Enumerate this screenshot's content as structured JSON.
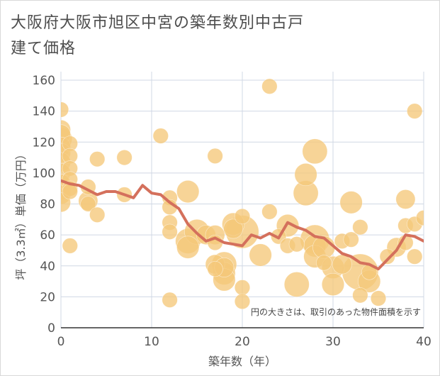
{
  "chart_data": {
    "type": "scatter",
    "title": "大阪府大阪市旭区中宮の築年数別中古戸建て価格",
    "xlabel": "築年数（年）",
    "ylabel": "坪（3.3㎡）単価（万円）",
    "note": "円の大きさは、取引のあった物件面積を示す",
    "xlim": [
      0,
      40
    ],
    "ylim": [
      0,
      160
    ],
    "xticks": [
      "0",
      "10",
      "20",
      "30",
      "40"
    ],
    "yticks": [
      "0",
      "20",
      "40",
      "60",
      "80",
      "100",
      "120",
      "140",
      "160"
    ],
    "grid": true,
    "colors": {
      "bubble": "#f5c87a",
      "line": "#d4705c",
      "grid": "#d0d8e4"
    },
    "points": [
      {
        "x": 0,
        "y": 141,
        "s": 1
      },
      {
        "x": 0,
        "y": 128,
        "s": 2
      },
      {
        "x": 0,
        "y": 125,
        "s": 2
      },
      {
        "x": 0,
        "y": 122,
        "s": 3
      },
      {
        "x": 0,
        "y": 117,
        "s": 2
      },
      {
        "x": 0,
        "y": 113,
        "s": 2
      },
      {
        "x": 0,
        "y": 107,
        "s": 2
      },
      {
        "x": 0,
        "y": 100,
        "s": 2
      },
      {
        "x": 0,
        "y": 93,
        "s": 2
      },
      {
        "x": 0,
        "y": 89,
        "s": 2
      },
      {
        "x": 0,
        "y": 86,
        "s": 2
      },
      {
        "x": 0,
        "y": 81,
        "s": 2
      },
      {
        "x": 1,
        "y": 119,
        "s": 1
      },
      {
        "x": 1,
        "y": 111,
        "s": 1
      },
      {
        "x": 1,
        "y": 103,
        "s": 1
      },
      {
        "x": 1,
        "y": 96,
        "s": 1
      },
      {
        "x": 1,
        "y": 90,
        "s": 1
      },
      {
        "x": 1,
        "y": 88,
        "s": 1
      },
      {
        "x": 1,
        "y": 53,
        "s": 1
      },
      {
        "x": 3,
        "y": 91,
        "s": 1
      },
      {
        "x": 3,
        "y": 82,
        "s": 2
      },
      {
        "x": 3,
        "y": 80,
        "s": 1
      },
      {
        "x": 4,
        "y": 109,
        "s": 1
      },
      {
        "x": 4,
        "y": 73,
        "s": 1
      },
      {
        "x": 7,
        "y": 110,
        "s": 1
      },
      {
        "x": 7,
        "y": 86,
        "s": 1
      },
      {
        "x": 11,
        "y": 124,
        "s": 1
      },
      {
        "x": 12,
        "y": 84,
        "s": 1
      },
      {
        "x": 12,
        "y": 78,
        "s": 1
      },
      {
        "x": 12,
        "y": 68,
        "s": 1
      },
      {
        "x": 12,
        "y": 62,
        "s": 1
      },
      {
        "x": 12,
        "y": 18,
        "s": 1
      },
      {
        "x": 14,
        "y": 88,
        "s": 3
      },
      {
        "x": 14,
        "y": 56,
        "s": 4
      },
      {
        "x": 14,
        "y": 52,
        "s": 3
      },
      {
        "x": 15,
        "y": 62,
        "s": 4
      },
      {
        "x": 16,
        "y": 60,
        "s": 2
      },
      {
        "x": 17,
        "y": 111,
        "s": 1
      },
      {
        "x": 17,
        "y": 60,
        "s": 2
      },
      {
        "x": 17,
        "y": 55,
        "s": 1
      },
      {
        "x": 17,
        "y": 41,
        "s": 2
      },
      {
        "x": 17,
        "y": 38,
        "s": 1
      },
      {
        "x": 18,
        "y": 41,
        "s": 4
      },
      {
        "x": 18,
        "y": 39,
        "s": 2
      },
      {
        "x": 18,
        "y": 35,
        "s": 3
      },
      {
        "x": 18,
        "y": 31,
        "s": 3
      },
      {
        "x": 19,
        "y": 67,
        "s": 3
      },
      {
        "x": 19,
        "y": 64,
        "s": 2
      },
      {
        "x": 20,
        "y": 72,
        "s": 1
      },
      {
        "x": 20,
        "y": 62,
        "s": 8
      },
      {
        "x": 20,
        "y": 26,
        "s": 1
      },
      {
        "x": 20,
        "y": 17,
        "s": 1
      },
      {
        "x": 22,
        "y": 47,
        "s": 3
      },
      {
        "x": 23,
        "y": 156,
        "s": 1
      },
      {
        "x": 23,
        "y": 75,
        "s": 1
      },
      {
        "x": 24,
        "y": 59,
        "s": 1
      },
      {
        "x": 25,
        "y": 66,
        "s": 3
      },
      {
        "x": 25,
        "y": 53,
        "s": 1
      },
      {
        "x": 26,
        "y": 54,
        "s": 1
      },
      {
        "x": 26,
        "y": 28,
        "s": 4
      },
      {
        "x": 27,
        "y": 99,
        "s": 3
      },
      {
        "x": 27,
        "y": 87,
        "s": 4
      },
      {
        "x": 28,
        "y": 114,
        "s": 4
      },
      {
        "x": 28,
        "y": 57,
        "s": 6
      },
      {
        "x": 28,
        "y": 53,
        "s": 3
      },
      {
        "x": 28,
        "y": 46,
        "s": 3
      },
      {
        "x": 29,
        "y": 52,
        "s": 3
      },
      {
        "x": 29,
        "y": 42,
        "s": 1
      },
      {
        "x": 30,
        "y": 39,
        "s": 3
      },
      {
        "x": 30,
        "y": 28,
        "s": 3
      },
      {
        "x": 31,
        "y": 56,
        "s": 1
      },
      {
        "x": 31,
        "y": 41,
        "s": 2
      },
      {
        "x": 32,
        "y": 81,
        "s": 3
      },
      {
        "x": 32,
        "y": 57,
        "s": 1
      },
      {
        "x": 33,
        "y": 65,
        "s": 1
      },
      {
        "x": 33,
        "y": 21,
        "s": 1
      },
      {
        "x": 33,
        "y": 36,
        "s": 10
      },
      {
        "x": 34,
        "y": 30,
        "s": 3
      },
      {
        "x": 34,
        "y": 36,
        "s": 1
      },
      {
        "x": 35,
        "y": 19,
        "s": 1
      },
      {
        "x": 36,
        "y": 46,
        "s": 1
      },
      {
        "x": 37,
        "y": 52,
        "s": 2
      },
      {
        "x": 38,
        "y": 83,
        "s": 2
      },
      {
        "x": 38,
        "y": 66,
        "s": 1
      },
      {
        "x": 38,
        "y": 55,
        "s": 1
      },
      {
        "x": 39,
        "y": 140,
        "s": 1
      },
      {
        "x": 39,
        "y": 67,
        "s": 1
      },
      {
        "x": 39,
        "y": 46,
        "s": 1
      },
      {
        "x": 40,
        "y": 71,
        "s": 1
      }
    ],
    "trend": [
      {
        "x": 0,
        "y": 95
      },
      {
        "x": 1,
        "y": 93
      },
      {
        "x": 2,
        "y": 92
      },
      {
        "x": 3,
        "y": 89
      },
      {
        "x": 4,
        "y": 86
      },
      {
        "x": 5,
        "y": 88
      },
      {
        "x": 6,
        "y": 88
      },
      {
        "x": 7,
        "y": 86
      },
      {
        "x": 8,
        "y": 84
      },
      {
        "x": 9,
        "y": 92
      },
      {
        "x": 10,
        "y": 87
      },
      {
        "x": 11,
        "y": 86
      },
      {
        "x": 12,
        "y": 81
      },
      {
        "x": 13,
        "y": 77
      },
      {
        "x": 14,
        "y": 67
      },
      {
        "x": 15,
        "y": 61
      },
      {
        "x": 16,
        "y": 56
      },
      {
        "x": 17,
        "y": 58
      },
      {
        "x": 18,
        "y": 55
      },
      {
        "x": 19,
        "y": 54
      },
      {
        "x": 20,
        "y": 53
      },
      {
        "x": 21,
        "y": 60
      },
      {
        "x": 22,
        "y": 58
      },
      {
        "x": 23,
        "y": 61
      },
      {
        "x": 24,
        "y": 58
      },
      {
        "x": 25,
        "y": 68
      },
      {
        "x": 26,
        "y": 65
      },
      {
        "x": 27,
        "y": 63
      },
      {
        "x": 28,
        "y": 59
      },
      {
        "x": 29,
        "y": 58
      },
      {
        "x": 30,
        "y": 53
      },
      {
        "x": 31,
        "y": 48
      },
      {
        "x": 32,
        "y": 46
      },
      {
        "x": 33,
        "y": 42
      },
      {
        "x": 34,
        "y": 41
      },
      {
        "x": 35,
        "y": 38
      },
      {
        "x": 36,
        "y": 44
      },
      {
        "x": 37,
        "y": 50
      },
      {
        "x": 38,
        "y": 60
      },
      {
        "x": 39,
        "y": 59
      },
      {
        "x": 40,
        "y": 56
      }
    ]
  }
}
